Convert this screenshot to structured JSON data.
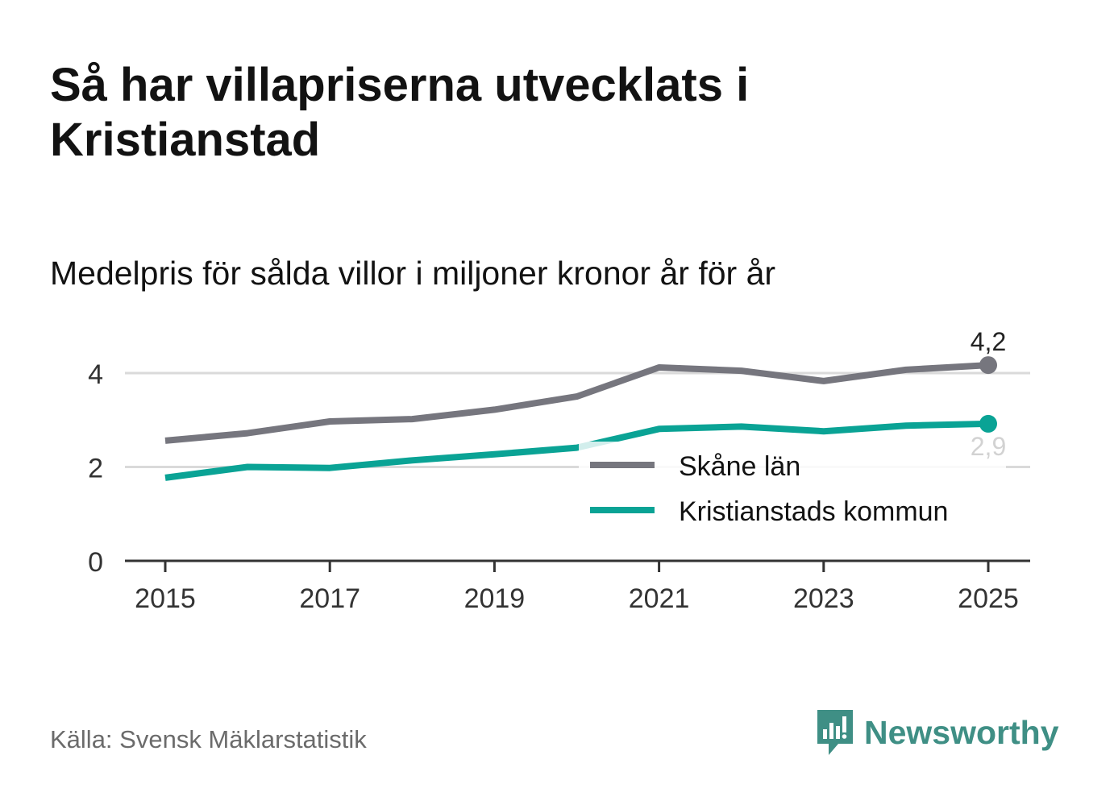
{
  "title": "Så har villapriserna utvecklats i Kristianstad",
  "subtitle": "Medelpris för sålda villor i miljoner kronor år för år",
  "source": "Källa: Svensk Mäklarstatistik",
  "brand": "Newsworthy",
  "colors": {
    "skane": "#76767e",
    "kristianstad": "#0aa395",
    "grid": "#dadada",
    "axis": "#333333",
    "brand": "#3f8f85"
  },
  "chart_data": {
    "type": "line",
    "title": "Medelpris för sålda villor i miljoner kronor år för år",
    "xlabel": "",
    "ylabel": "",
    "x": [
      2015,
      2016,
      2017,
      2018,
      2019,
      2020,
      2021,
      2022,
      2023,
      2024,
      2025
    ],
    "xticks": [
      "2015",
      "2017",
      "2019",
      "2021",
      "2023",
      "2025"
    ],
    "yticks": [
      "0",
      "2",
      "4"
    ],
    "ylim": [
      0,
      4.5
    ],
    "series": [
      {
        "name": "Skåne län",
        "color": "#76767e",
        "values": [
          2.56,
          2.72,
          2.97,
          3.02,
          3.22,
          3.5,
          4.12,
          4.05,
          3.83,
          4.07,
          4.17
        ],
        "end_label": "4,2"
      },
      {
        "name": "Kristianstads kommun",
        "color": "#0aa395",
        "values": [
          1.77,
          2.0,
          1.98,
          2.14,
          2.27,
          2.41,
          2.81,
          2.86,
          2.76,
          2.88,
          2.92
        ],
        "end_label": "2,9"
      }
    ],
    "legend": [
      "Skåne län",
      "Kristianstads kommun"
    ],
    "legend_position": "bottom-right"
  }
}
